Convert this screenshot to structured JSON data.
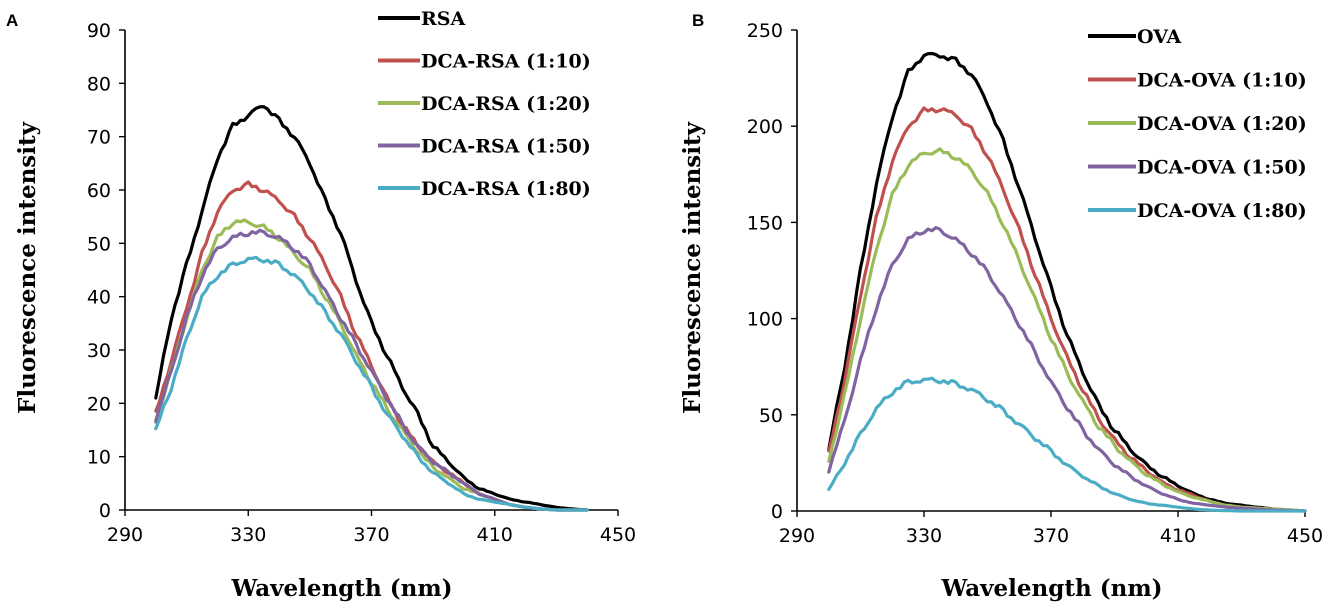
{
  "chart_data": [
    {
      "panel": "A",
      "type": "line",
      "xlabel": "Wavelength (nm)",
      "ylabel": "Fluorescence intensity",
      "xlim": [
        290,
        450
      ],
      "ylim": [
        0,
        90
      ],
      "xticks": [
        290,
        330,
        370,
        410,
        450
      ],
      "yticks": [
        0,
        10,
        20,
        30,
        40,
        50,
        60,
        70,
        80,
        90
      ],
      "grid": false,
      "legend_position": "top-right",
      "x": [
        300,
        305,
        310,
        315,
        320,
        325,
        330,
        335,
        340,
        345,
        350,
        355,
        360,
        365,
        370,
        375,
        380,
        385,
        390,
        395,
        400,
        405,
        410,
        415,
        420,
        425,
        430,
        435,
        440
      ],
      "series": [
        {
          "name": "RSA",
          "color": "#000000",
          "values": [
            21,
            36,
            46,
            56,
            66,
            72,
            74,
            76,
            73,
            70,
            65,
            58,
            52,
            43,
            35,
            29,
            23,
            18,
            12,
            9,
            6,
            4,
            3,
            2,
            1.5,
            1,
            0.5,
            0.2,
            0
          ]
        },
        {
          "name": "DCA-RSA (1:10)",
          "color": "#c0504d",
          "values": [
            18,
            28,
            38,
            48,
            56,
            60,
            61,
            60,
            58,
            55,
            51,
            46,
            40,
            33,
            27,
            21,
            16,
            12,
            9,
            7,
            5,
            3,
            2,
            1,
            0.5,
            0.2,
            0,
            0,
            0
          ]
        },
        {
          "name": "DCA-RSA (1:20)",
          "color": "#9bbb59",
          "values": [
            17,
            26,
            36,
            45,
            51,
            54,
            54,
            53,
            51,
            48,
            45,
            40,
            35,
            29,
            24,
            19,
            15,
            11,
            8,
            6,
            4,
            3,
            2,
            1,
            0.5,
            0.2,
            0,
            0,
            0
          ]
        },
        {
          "name": "DCA-RSA (1:50)",
          "color": "#8064a2",
          "values": [
            17,
            26,
            36,
            44,
            49,
            51,
            52,
            52,
            51,
            49,
            46,
            41,
            36,
            31,
            26,
            21,
            16,
            12,
            9,
            7,
            5,
            3,
            2,
            1,
            0.5,
            0.2,
            0,
            0,
            0
          ]
        },
        {
          "name": "DCA-RSA (1:80)",
          "color": "#4bacc6",
          "values": [
            15,
            23,
            32,
            40,
            44,
            46,
            47,
            47,
            46,
            44,
            41,
            37,
            33,
            28,
            23,
            18,
            14,
            10,
            7,
            5,
            3,
            2,
            1.5,
            1,
            0.5,
            0.2,
            0,
            0,
            0
          ]
        }
      ]
    },
    {
      "panel": "B",
      "type": "line",
      "xlabel": "Wavelength (nm)",
      "ylabel": "Fluorescence intensity",
      "xlim": [
        290,
        450
      ],
      "ylim": [
        0,
        250
      ],
      "xticks": [
        290,
        330,
        370,
        410,
        450
      ],
      "yticks": [
        0,
        50,
        100,
        150,
        200,
        250
      ],
      "grid": false,
      "legend_position": "top-right",
      "x": [
        300,
        305,
        310,
        315,
        320,
        325,
        330,
        335,
        340,
        345,
        350,
        355,
        360,
        365,
        370,
        375,
        380,
        385,
        390,
        395,
        400,
        405,
        410,
        415,
        420,
        425,
        430,
        435,
        440,
        445,
        450
      ],
      "series": [
        {
          "name": "OVA",
          "color": "#000000",
          "values": [
            32,
            75,
            125,
            170,
            205,
            228,
            237,
            237,
            234,
            227,
            212,
            192,
            168,
            142,
            116,
            92,
            72,
            55,
            42,
            32,
            24,
            18,
            13,
            9,
            6,
            4,
            3,
            2,
            1,
            0.5,
            0
          ]
        },
        {
          "name": "DCA-OVA (1:10)",
          "color": "#c0504d",
          "values": [
            30,
            68,
            112,
            152,
            182,
            200,
            208,
            209,
            206,
            198,
            185,
            167,
            146,
            123,
            100,
            80,
            63,
            48,
            37,
            28,
            21,
            15,
            11,
            8,
            5,
            3,
            2,
            1.5,
            1,
            0.5,
            0
          ]
        },
        {
          "name": "DCA-OVA (1:20)",
          "color": "#9bbb59",
          "values": [
            26,
            60,
            100,
            136,
            164,
            180,
            186,
            187,
            184,
            177,
            165,
            149,
            130,
            110,
            90,
            72,
            57,
            44,
            34,
            26,
            19,
            14,
            10,
            7,
            5,
            3,
            2,
            1.5,
            1,
            0.5,
            0
          ]
        },
        {
          "name": "DCA-OVA (1:50)",
          "color": "#8064a2",
          "values": [
            21,
            47,
            78,
            106,
            128,
            141,
            146,
            146,
            141,
            134,
            124,
            111,
            97,
            82,
            67,
            54,
            42,
            32,
            24,
            18,
            13,
            9,
            6,
            4,
            3,
            2,
            1.5,
            1,
            0.5,
            0.2,
            0
          ]
        },
        {
          "name": "DCA-OVA (1:80)",
          "color": "#4bacc6",
          "values": [
            11,
            25,
            40,
            53,
            62,
            67,
            68,
            68,
            66,
            63,
            58,
            52,
            45,
            38,
            31,
            24,
            18,
            13,
            9,
            6,
            4,
            3,
            2,
            1,
            0.5,
            0.2,
            0,
            0,
            0,
            0,
            0
          ]
        }
      ]
    }
  ]
}
